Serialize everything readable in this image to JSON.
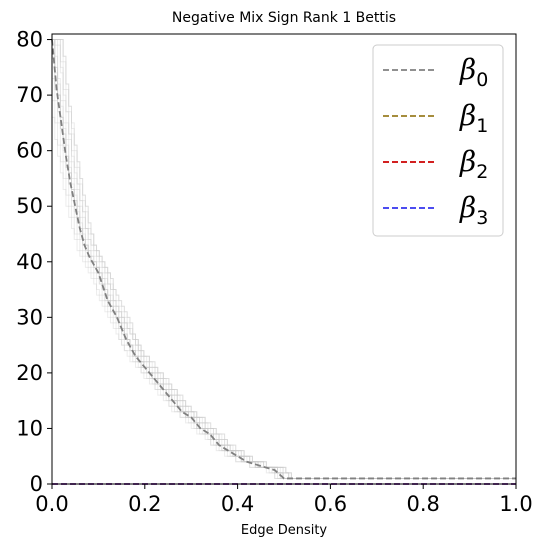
{
  "chart_data": {
    "type": "line",
    "title": "Negative Mix Sign Rank 1 Bettis",
    "xlabel": "Edge Density",
    "ylabel": "",
    "xlim": [
      0.0,
      1.0
    ],
    "ylim": [
      0,
      81
    ],
    "xticks": [
      "0.0",
      "0.2",
      "0.4",
      "0.6",
      "0.8",
      "1.0"
    ],
    "yticks": [
      "0",
      "10",
      "20",
      "30",
      "40",
      "50",
      "60",
      "70",
      "80"
    ],
    "grid": false,
    "legend_position": "top-right",
    "series": [
      {
        "name": "β0",
        "symbol": "β",
        "sub": "0",
        "color": "#808080",
        "style": "dashed",
        "x": [
          0.0,
          0.01,
          0.02,
          0.03,
          0.04,
          0.05,
          0.06,
          0.07,
          0.08,
          0.1,
          0.12,
          0.14,
          0.16,
          0.18,
          0.2,
          0.22,
          0.24,
          0.26,
          0.28,
          0.3,
          0.32,
          0.34,
          0.36,
          0.38,
          0.4,
          0.42,
          0.44,
          0.46,
          0.48,
          0.5,
          0.52,
          0.6,
          0.7,
          0.8,
          0.9,
          1.0
        ],
        "y": [
          80,
          71,
          65,
          59,
          54,
          50,
          46,
          43,
          41,
          38,
          33,
          30,
          26,
          23,
          21,
          19,
          17,
          15,
          13,
          12,
          10,
          9,
          7,
          6,
          5,
          4,
          3.5,
          3,
          2.5,
          1,
          1,
          1,
          1,
          1,
          1,
          1
        ]
      },
      {
        "name": "β1",
        "symbol": "β",
        "sub": "1",
        "color": "#9a7d22",
        "style": "dashed",
        "x": [
          0.0,
          1.0
        ],
        "y": [
          0,
          0
        ]
      },
      {
        "name": "β2",
        "symbol": "β",
        "sub": "2",
        "color": "#cc0000",
        "style": "dashed",
        "x": [
          0.0,
          1.0
        ],
        "y": [
          0,
          0
        ]
      },
      {
        "name": "β3",
        "symbol": "β",
        "sub": "3",
        "color": "#3333ee",
        "style": "dashed",
        "x": [
          0.0,
          1.0
        ],
        "y": [
          0,
          0
        ]
      }
    ]
  }
}
